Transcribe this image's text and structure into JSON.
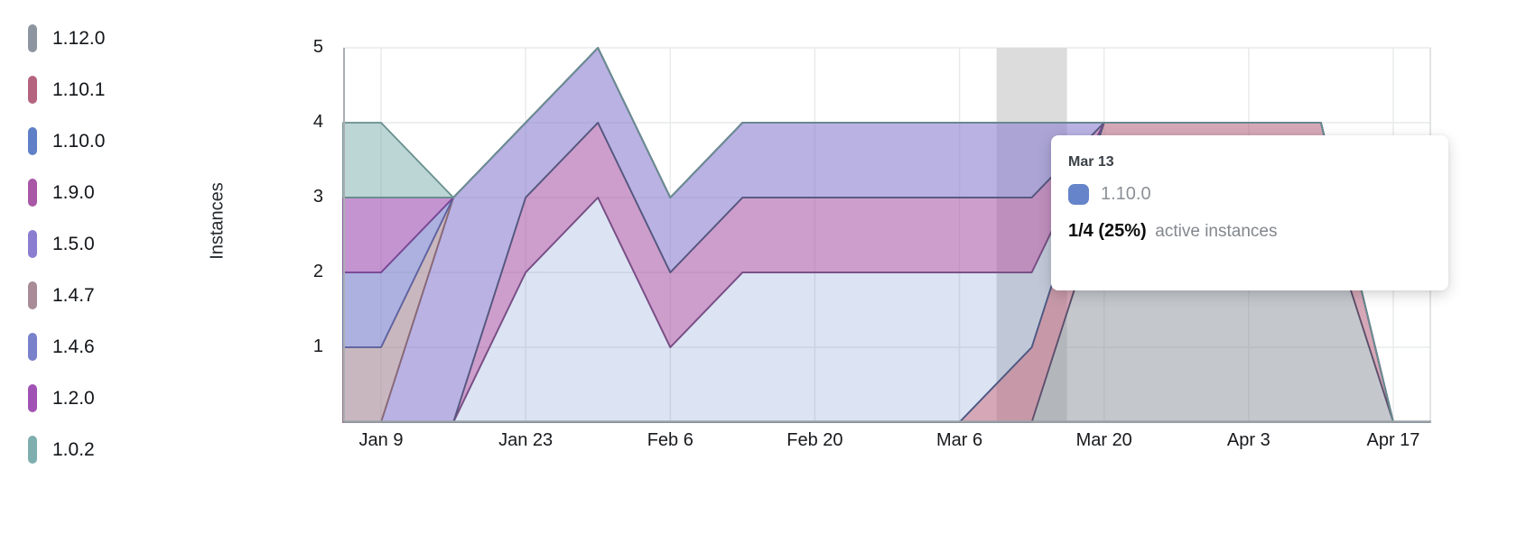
{
  "y_axis": {
    "title": "Instances",
    "ticks": [
      "5",
      "4",
      "3",
      "2",
      "1"
    ]
  },
  "x_axis": {
    "ticks": [
      "Jan 9",
      "Jan 23",
      "Feb 6",
      "Feb 20",
      "Mar 6",
      "Mar 20",
      "Apr 3",
      "Apr 17"
    ]
  },
  "legend": {
    "items": [
      {
        "label": "1.12.0",
        "color": "#8d96a0"
      },
      {
        "label": "1.10.1",
        "color": "#b5647f"
      },
      {
        "label": "1.10.0",
        "color": "#5f80c7"
      },
      {
        "label": "1.9.0",
        "color": "#a958a5"
      },
      {
        "label": "1.5.0",
        "color": "#8b7ed0"
      },
      {
        "label": "1.4.7",
        "color": "#a88b97"
      },
      {
        "label": "1.4.6",
        "color": "#7981cb"
      },
      {
        "label": "1.2.0",
        "color": "#a053b5"
      },
      {
        "label": "1.0.2",
        "color": "#7faeae"
      }
    ]
  },
  "tooltip": {
    "date": "Mar 13",
    "series": "1.10.0",
    "swatch_color": "#6584c9",
    "value": "1/4 (25%)",
    "suffix": "active instances"
  },
  "chart_data": {
    "type": "area",
    "stacked": true,
    "title": "",
    "xlabel": "",
    "ylabel": "Instances",
    "ylim": [
      0,
      5
    ],
    "grid": true,
    "legend_position": "left",
    "x": [
      "Jan 2",
      "Jan 9",
      "Jan 16",
      "Jan 23",
      "Jan 30",
      "Feb 6",
      "Feb 13",
      "Feb 20",
      "Feb 27",
      "Mar 6",
      "Mar 13",
      "Mar 20",
      "Mar 27",
      "Apr 3",
      "Apr 10",
      "Apr 17"
    ],
    "hover_x": "Mar 13",
    "hover_index": 10,
    "series": [
      {
        "name": "1.12.0",
        "color": "#8d96a0",
        "stroke": "#71767e",
        "fill_alpha": 0.52,
        "values": [
          0,
          0,
          0,
          0,
          0,
          0,
          0,
          0,
          0,
          0,
          0,
          3,
          3,
          3,
          3,
          0
        ]
      },
      {
        "name": "1.10.1",
        "color": "#b5647f",
        "stroke": "#5d4f6d",
        "fill_alpha": 0.56,
        "values": [
          0,
          0,
          0,
          0,
          0,
          0,
          0,
          0,
          0,
          0,
          1,
          1,
          1,
          1,
          1,
          0
        ]
      },
      {
        "name": "1.10.0",
        "color": "#5f80c7",
        "stroke": "#4d5a85",
        "fill_alpha": 0.22,
        "values": [
          0,
          0,
          0,
          2,
          3,
          1,
          2,
          2,
          2,
          2,
          1,
          0,
          0,
          0,
          0,
          0
        ]
      },
      {
        "name": "1.9.0",
        "color": "#a958a5",
        "stroke": "#7a4d85",
        "fill_alpha": 0.58,
        "values": [
          0,
          0,
          0,
          1,
          1,
          1,
          1,
          1,
          1,
          1,
          1,
          0,
          0,
          0,
          0,
          0
        ]
      },
      {
        "name": "1.5.0",
        "color": "#8b7ed0",
        "stroke": "#53587f",
        "fill_alpha": 0.6,
        "values": [
          0,
          0,
          3,
          1,
          1,
          1,
          1,
          1,
          1,
          1,
          1,
          0,
          0,
          0,
          0,
          0
        ]
      },
      {
        "name": "1.4.7",
        "color": "#a88b97",
        "stroke": "#8a6876",
        "fill_alpha": 0.62,
        "values": [
          1,
          1,
          0,
          0,
          0,
          0,
          0,
          0,
          0,
          0,
          0,
          0,
          0,
          0,
          0,
          0
        ]
      },
      {
        "name": "1.4.6",
        "color": "#7981cb",
        "stroke": "#5d63a2",
        "fill_alpha": 0.62,
        "values": [
          1,
          1,
          0,
          0,
          0,
          0,
          0,
          0,
          0,
          0,
          0,
          0,
          0,
          0,
          0,
          0
        ]
      },
      {
        "name": "1.2.0",
        "color": "#a053b5",
        "stroke": "#7a4693",
        "fill_alpha": 0.62,
        "values": [
          1,
          1,
          0,
          0,
          0,
          0,
          0,
          0,
          0,
          0,
          0,
          0,
          0,
          0,
          0,
          0
        ]
      },
      {
        "name": "1.0.2",
        "color": "#7faeae",
        "stroke": "#68908f",
        "fill_alpha": 0.52,
        "values": [
          1,
          1,
          0,
          0,
          0,
          0,
          0,
          0,
          0,
          0,
          0,
          0,
          0,
          0,
          0,
          0
        ]
      }
    ]
  }
}
